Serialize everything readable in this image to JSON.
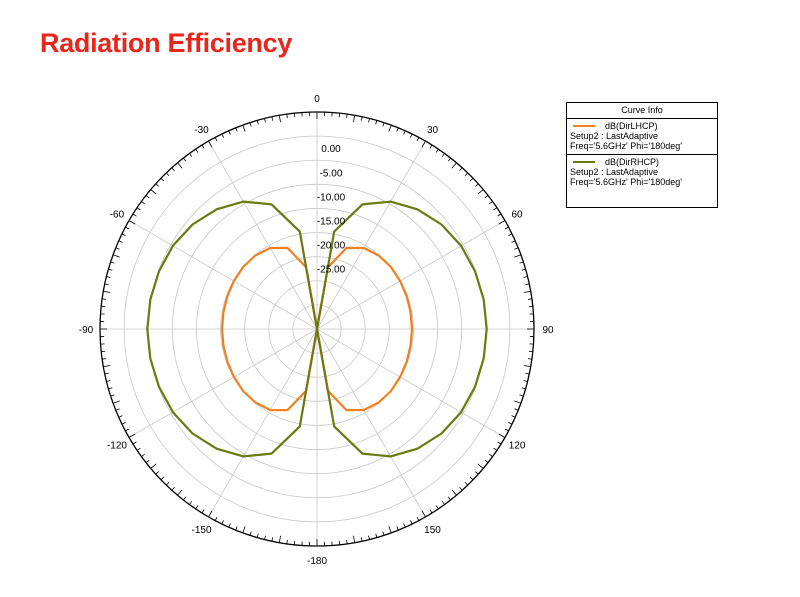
{
  "slide": {
    "title": "Radiation Efficiency"
  },
  "legend": {
    "title": "Curve Info",
    "entries": [
      {
        "name": "dB(DirLHCP)",
        "setup": "Setup2 : LastAdaptive",
        "params": "Freq='5.6GHz' Phi='180deg'",
        "color": "#f08020"
      },
      {
        "name": "dB(DirRHCP)",
        "setup": "Setup2 : LastAdaptive",
        "params": "Freq='5.6GHz' Phi='180deg'",
        "color": "#6b7a10"
      }
    ]
  },
  "chart_data": {
    "type": "line",
    "coordinate_system": "polar",
    "angle_ticks": [
      0,
      30,
      60,
      90,
      120,
      150,
      -180,
      -150,
      -120,
      -90,
      -60,
      -30
    ],
    "angle_tick_labels": [
      "0",
      "30",
      "60",
      "90",
      "120",
      "150",
      "-180",
      "-150",
      "-120",
      "-90",
      "-60",
      "-30"
    ],
    "radial_ticks": [
      0,
      -5,
      -10,
      -15,
      -20,
      -25
    ],
    "radial_tick_labels": [
      "0.00",
      "-5.00",
      "-10.00",
      "-15.00",
      "-20.00",
      "-25.00"
    ],
    "rlim": [
      -37.5,
      7.5
    ],
    "grid": true,
    "legend_position": "top-right",
    "theta": [
      0,
      10,
      20,
      30,
      40,
      50,
      60,
      70,
      80,
      90,
      100,
      110,
      120,
      130,
      140,
      150,
      160,
      170,
      180,
      190,
      200,
      210,
      220,
      230,
      240,
      250,
      260,
      270,
      280,
      290,
      300,
      310,
      320,
      330,
      340,
      350
    ],
    "series": [
      {
        "name": "dB(DirLHCP)",
        "color": "#f08020",
        "values": [
          -37.5,
          -24.5,
          -19.6,
          -18.1,
          -17.6,
          -17.5,
          -17.6,
          -17.7,
          -17.8,
          -17.8,
          -17.8,
          -17.7,
          -17.6,
          -17.5,
          -17.6,
          -18.1,
          -19.6,
          -24.5,
          -37.5,
          -24.5,
          -19.6,
          -18.1,
          -17.6,
          -17.5,
          -17.6,
          -17.7,
          -17.8,
          -17.8,
          -17.8,
          -17.7,
          -17.6,
          -17.5,
          -17.6,
          -18.1,
          -19.6,
          -24.5
        ]
      },
      {
        "name": "dB(DirRHCP)",
        "color": "#6b7a10",
        "values": [
          -37.5,
          -17.0,
          -10.0,
          -7.0,
          -5.1,
          -3.8,
          -3.0,
          -2.6,
          -2.4,
          -2.3,
          -2.4,
          -2.6,
          -3.0,
          -3.8,
          -5.1,
          -7.0,
          -10.0,
          -17.0,
          -37.5,
          -17.0,
          -10.0,
          -7.0,
          -5.1,
          -3.8,
          -3.0,
          -2.6,
          -2.4,
          -2.3,
          -2.4,
          -2.6,
          -3.0,
          -3.8,
          -5.1,
          -7.0,
          -10.0,
          -17.0
        ]
      }
    ]
  }
}
